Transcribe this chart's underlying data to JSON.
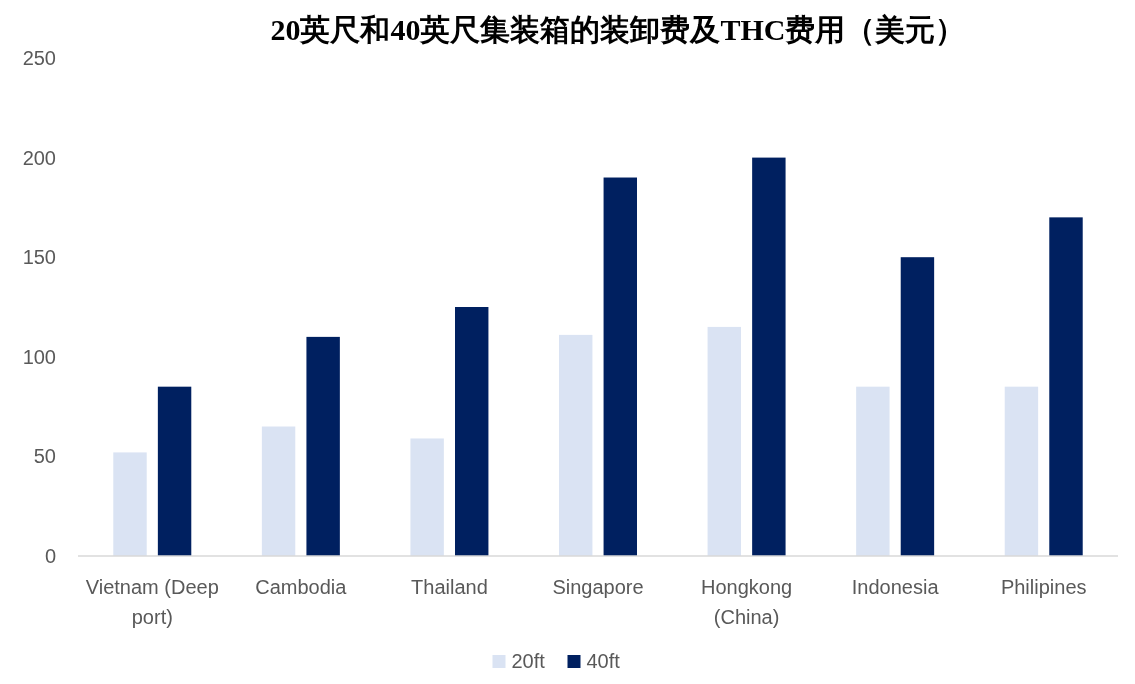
{
  "chart_data": {
    "type": "bar",
    "title": "20英尺和40英尺集装箱的装卸费及THC费用（美元）",
    "categories": [
      "Vietnam (Deep port)",
      "Cambodia",
      "Thailand",
      "Singapore",
      "Hongkong (China)",
      "Indonesia",
      "Philipines"
    ],
    "series": [
      {
        "name": "20ft",
        "color": "#dae3f3",
        "values": [
          52,
          65,
          59,
          111,
          115,
          85,
          85
        ]
      },
      {
        "name": "40ft",
        "color": "#002060",
        "values": [
          85,
          110,
          125,
          190,
          200,
          150,
          170
        ]
      }
    ],
    "ylim": [
      0,
      250
    ],
    "yticks": [
      0,
      50,
      100,
      150,
      200,
      250
    ],
    "grid": false,
    "legend": "bottom"
  }
}
